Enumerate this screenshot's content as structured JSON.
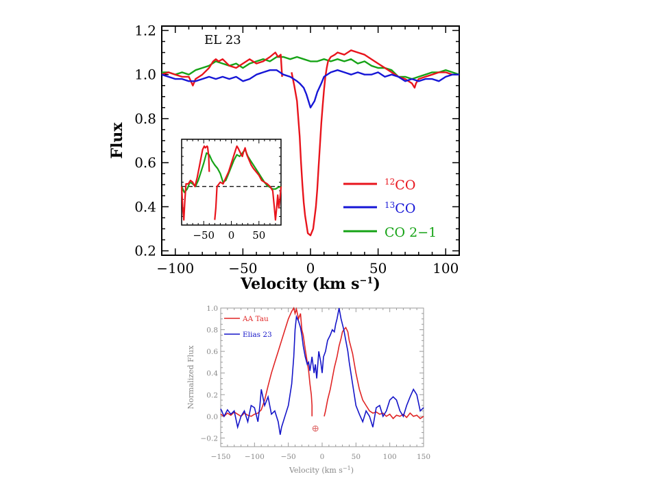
{
  "chart_data": [
    {
      "type": "line",
      "title": "EL 23",
      "xlabel": "Velocity (km s",
      "xlabel_sup": "−1",
      "xlabel_close": ")",
      "ylabel": "Flux",
      "xlim": [
        -110,
        110
      ],
      "ylim": [
        0.18,
        1.22
      ],
      "xticks": [
        -100,
        -50,
        0,
        50,
        100
      ],
      "xtick_labels": [
        "−100",
        "−50",
        "0",
        "50",
        "100"
      ],
      "yticks": [
        0.2,
        0.4,
        0.6,
        0.8,
        1.0,
        1.2
      ],
      "ytick_labels": [
        "0.2",
        "0.4",
        "0.6",
        "0.8",
        "1.0",
        "1.2"
      ],
      "legend_position": "bottom-right",
      "series": [
        {
          "name_sup": "12",
          "name": "CO",
          "color": "#e8141c",
          "x": [
            -110,
            -105,
            -100,
            -95,
            -90,
            -87,
            -85,
            -80,
            -75,
            -72,
            -70,
            -68,
            -65,
            -60,
            -55,
            -50,
            -45,
            -40,
            -35,
            -30,
            -26,
            -24,
            -22,
            -21,
            null,
            -14,
            -12,
            -10,
            -8,
            -7,
            -6,
            -5,
            -4,
            -3,
            -2,
            0,
            2,
            4,
            5,
            6,
            7,
            8,
            9,
            10,
            11,
            12,
            13,
            15,
            18,
            20,
            25,
            30,
            35,
            40,
            45,
            50,
            55,
            60,
            65,
            70,
            75,
            77,
            78,
            80,
            85,
            90,
            95,
            100,
            105,
            110
          ],
          "y": [
            1.0,
            1.01,
            1.0,
            0.99,
            0.99,
            0.95,
            0.98,
            1.0,
            1.03,
            1.06,
            1.07,
            1.06,
            1.07,
            1.04,
            1.03,
            1.05,
            1.07,
            1.05,
            1.06,
            1.08,
            1.1,
            1.08,
            1.09,
            0.99,
            null,
            1.01,
            0.95,
            0.88,
            0.72,
            0.6,
            0.5,
            0.42,
            0.36,
            0.32,
            0.28,
            0.27,
            0.3,
            0.4,
            0.48,
            0.58,
            0.68,
            0.78,
            0.86,
            0.93,
            0.99,
            1.03,
            1.06,
            1.08,
            1.09,
            1.1,
            1.09,
            1.11,
            1.1,
            1.09,
            1.07,
            1.05,
            1.03,
            1.01,
            0.99,
            0.98,
            0.96,
            0.94,
            0.96,
            0.98,
            0.99,
            1.0,
            1.01,
            1.01,
            1.0,
            1.0
          ]
        },
        {
          "name_sup": "13",
          "name": "CO",
          "color": "#1616d6",
          "x": [
            -110,
            -100,
            -95,
            -90,
            -85,
            -80,
            -75,
            -70,
            -65,
            -60,
            -55,
            -50,
            -45,
            -40,
            -35,
            -30,
            -25,
            -20,
            -15,
            -10,
            -8,
            -5,
            -3,
            0,
            3,
            5,
            8,
            10,
            15,
            20,
            25,
            30,
            35,
            40,
            45,
            50,
            55,
            60,
            65,
            70,
            75,
            80,
            85,
            90,
            95,
            100,
            105,
            110
          ],
          "y": [
            1.0,
            0.98,
            0.98,
            0.97,
            0.97,
            0.98,
            0.99,
            0.98,
            0.99,
            0.98,
            0.99,
            0.97,
            0.98,
            1.0,
            1.01,
            1.02,
            1.02,
            1.0,
            0.99,
            0.97,
            0.96,
            0.94,
            0.91,
            0.85,
            0.88,
            0.92,
            0.96,
            0.99,
            1.01,
            1.02,
            1.01,
            1.0,
            1.01,
            1.0,
            1.0,
            1.01,
            0.99,
            1.0,
            0.99,
            0.97,
            0.98,
            0.97,
            0.98,
            0.98,
            0.97,
            0.99,
            1.0,
            1.0
          ]
        },
        {
          "name": "CO 2−1",
          "color": "#16a316",
          "x": [
            -110,
            -105,
            -100,
            -95,
            -90,
            -85,
            -80,
            -75,
            -70,
            -65,
            -60,
            -55,
            -50,
            -45,
            -40,
            -35,
            -30,
            -25,
            -20,
            -15,
            -10,
            -5,
            0,
            5,
            10,
            15,
            20,
            25,
            30,
            35,
            40,
            45,
            50,
            55,
            60,
            65,
            70,
            75,
            80,
            85,
            90,
            95,
            100,
            105,
            110
          ],
          "y": [
            1.01,
            1.01,
            1.0,
            1.01,
            1.0,
            1.02,
            1.03,
            1.04,
            1.06,
            1.05,
            1.04,
            1.05,
            1.03,
            1.05,
            1.06,
            1.07,
            1.06,
            1.08,
            1.08,
            1.07,
            1.08,
            1.07,
            1.06,
            1.06,
            1.07,
            1.06,
            1.07,
            1.06,
            1.07,
            1.05,
            1.06,
            1.04,
            1.03,
            1.03,
            1.02,
            0.99,
            0.99,
            0.98,
            0.99,
            1.0,
            1.01,
            1.01,
            1.02,
            1.01,
            1.0
          ]
        }
      ],
      "inset": {
        "xlim": [
          -90,
          90
        ],
        "ylim": [
          0,
          1
        ],
        "xticks": [
          -50,
          0,
          50
        ],
        "xtick_labels": [
          "−50",
          "0",
          "50"
        ],
        "dashed_level": 0.45,
        "series": [
          {
            "color": "#e8141c",
            "x": [
              -90,
              -88,
              -86,
              -84,
              -82,
              -78,
              -74,
              -70,
              -66,
              -62,
              -58,
              -55,
              -52,
              -49,
              -47,
              -44,
              -43,
              -41,
              -40,
              null,
              -30,
              -28,
              -26,
              -20,
              -15,
              -10,
              -5,
              0,
              5,
              8,
              10,
              12,
              15,
              18,
              20,
              22,
              25,
              28,
              32,
              36,
              40,
              45,
              50,
              55,
              60,
              65,
              70,
              75,
              78,
              80,
              82,
              84,
              86,
              88,
              90
            ],
            "y": [
              0.45,
              0.2,
              0.06,
              0.3,
              0.48,
              0.48,
              0.52,
              0.5,
              0.45,
              0.55,
              0.68,
              0.78,
              0.88,
              0.92,
              0.9,
              0.92,
              0.91,
              0.8,
              0.62,
              null,
              0.06,
              0.2,
              0.45,
              0.5,
              0.48,
              0.55,
              0.62,
              0.72,
              0.82,
              0.88,
              0.92,
              0.9,
              0.86,
              0.82,
              0.8,
              0.85,
              0.9,
              0.82,
              0.76,
              0.7,
              0.66,
              0.62,
              0.58,
              0.52,
              0.5,
              0.48,
              0.45,
              0.4,
              0.2,
              0.06,
              0.2,
              0.35,
              0.2,
              0.3,
              0.45
            ]
          },
          {
            "color": "#16a316",
            "x": [
              -90,
              -85,
              -80,
              -75,
              -70,
              -65,
              -60,
              -55,
              -50,
              -45,
              -40,
              -35,
              -30,
              -25,
              -20,
              -15,
              -10,
              -5,
              0,
              5,
              10,
              15,
              20,
              25,
              30,
              35,
              40,
              45,
              50,
              55,
              60,
              65,
              70,
              75,
              80,
              85,
              90
            ],
            "y": [
              0.45,
              0.38,
              0.42,
              0.5,
              0.48,
              0.45,
              0.52,
              0.62,
              0.72,
              0.84,
              0.82,
              0.75,
              0.7,
              0.66,
              0.6,
              0.5,
              0.52,
              0.6,
              0.68,
              0.76,
              0.82,
              0.8,
              0.84,
              0.88,
              0.8,
              0.75,
              0.7,
              0.65,
              0.6,
              0.55,
              0.5,
              0.46,
              0.44,
              0.42,
              0.42,
              0.44,
              0.45
            ]
          }
        ]
      }
    },
    {
      "type": "line",
      "xlabel": "Velocity (km s",
      "xlabel_sup": "−1",
      "xlabel_close": ")",
      "ylabel": "Normalized Flux",
      "xlim": [
        -150,
        150
      ],
      "ylim": [
        -0.28,
        1.0
      ],
      "xticks": [
        -150,
        -100,
        -50,
        0,
        50,
        100,
        150
      ],
      "xtick_labels": [
        "−150",
        "−100",
        "−50",
        "0",
        "50",
        "100",
        "150"
      ],
      "yticks": [
        -0.2,
        0.0,
        0.2,
        0.4,
        0.6,
        0.8,
        1.0
      ],
      "ytick_labels": [
        "−0.2",
        "0.0",
        "0.2",
        "0.4",
        "0.6",
        "0.8",
        "1.0"
      ],
      "legend_position": "top-left",
      "telluric_symbol": "⊕",
      "telluric_x": -10,
      "telluric_y": -0.11,
      "series": [
        {
          "name": "AA Tau",
          "color": "#e02424",
          "x": [
            -150,
            -145,
            -140,
            -135,
            -130,
            -125,
            -120,
            -115,
            -110,
            -105,
            -100,
            -95,
            -90,
            -85,
            -80,
            -75,
            -70,
            -65,
            -60,
            -55,
            -50,
            -45,
            -42,
            -40,
            -38,
            -35,
            -32,
            -30,
            -28,
            -25,
            -22,
            -20,
            -18,
            -16,
            -15,
            -15,
            null,
            3,
            5,
            8,
            12,
            15,
            18,
            22,
            25,
            28,
            30,
            32,
            35,
            38,
            40,
            45,
            50,
            55,
            60,
            65,
            70,
            75,
            80,
            85,
            90,
            95,
            100,
            105,
            110,
            115,
            120,
            125,
            130,
            135,
            140,
            145,
            150
          ],
          "y": [
            0.02,
            0.0,
            0.03,
            0.01,
            0.04,
            0.02,
            0.0,
            0.03,
            0.01,
            0.0,
            0.02,
            0.03,
            0.06,
            0.15,
            0.28,
            0.4,
            0.5,
            0.6,
            0.7,
            0.8,
            0.9,
            0.97,
            1.0,
            0.95,
            0.99,
            0.9,
            0.95,
            0.8,
            0.75,
            0.62,
            0.5,
            0.42,
            0.3,
            0.2,
            0.1,
            0.0,
            null,
            0.0,
            0.05,
            0.15,
            0.25,
            0.35,
            0.45,
            0.55,
            0.65,
            0.72,
            0.78,
            0.8,
            0.82,
            0.78,
            0.7,
            0.58,
            0.4,
            0.25,
            0.15,
            0.1,
            0.05,
            0.03,
            0.04,
            0.02,
            0.03,
            0.0,
            0.02,
            -0.02,
            0.01,
            0.0,
            0.02,
            -0.01,
            0.03,
            0.0,
            0.01,
            -0.02,
            0.0
          ]
        },
        {
          "name": "Elias 23",
          "color": "#1414c8",
          "x": [
            -150,
            -145,
            -140,
            -135,
            -130,
            -125,
            -120,
            -115,
            -110,
            -105,
            -100,
            -95,
            -92,
            -90,
            -85,
            -80,
            -75,
            -70,
            -65,
            -62,
            -60,
            -55,
            -50,
            -45,
            -42,
            -40,
            -38,
            -35,
            -32,
            -30,
            -28,
            -25,
            -22,
            -20,
            -18,
            -15,
            -12,
            -10,
            -8,
            -5,
            -2,
            0,
            2,
            5,
            8,
            12,
            15,
            18,
            20,
            22,
            25,
            28,
            30,
            32,
            35,
            38,
            40,
            45,
            50,
            55,
            60,
            65,
            70,
            75,
            80,
            85,
            90,
            95,
            100,
            105,
            110,
            115,
            120,
            125,
            130,
            135,
            140,
            145,
            150
          ],
          "y": [
            0.07,
            0.0,
            0.06,
            0.02,
            0.05,
            -0.1,
            0.0,
            0.05,
            -0.05,
            0.1,
            0.08,
            -0.05,
            0.1,
            0.25,
            0.1,
            0.18,
            0.02,
            0.05,
            -0.05,
            -0.17,
            -0.1,
            0.0,
            0.1,
            0.3,
            0.55,
            0.8,
            0.92,
            0.88,
            0.82,
            0.75,
            0.65,
            0.55,
            0.48,
            0.5,
            0.42,
            0.55,
            0.4,
            0.48,
            0.35,
            0.6,
            0.5,
            0.4,
            0.55,
            0.6,
            0.7,
            0.75,
            0.8,
            0.78,
            0.85,
            0.9,
            1.0,
            0.9,
            0.85,
            0.8,
            0.7,
            0.6,
            0.5,
            0.3,
            0.1,
            0.02,
            -0.05,
            0.05,
            0.0,
            -0.1,
            0.08,
            0.1,
            0.0,
            0.05,
            0.15,
            0.18,
            0.15,
            0.05,
            0.0,
            0.1,
            0.18,
            0.25,
            0.2,
            0.05,
            0.08
          ]
        }
      ]
    }
  ]
}
